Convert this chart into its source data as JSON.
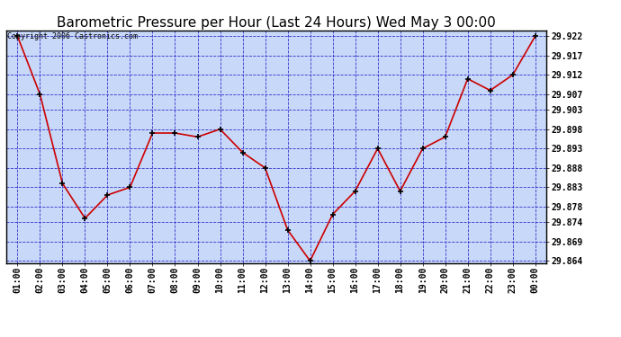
{
  "title": "Barometric Pressure per Hour (Last 24 Hours) Wed May 3 00:00",
  "copyright": "Copyright 2006 Castronics.com",
  "line_color": "#cc0000",
  "marker_color": "#000000",
  "background_color": "#c8d8f8",
  "plot_bg_color": "#c8d8f8",
  "grid_color": "#3333cc",
  "border_color": "#000000",
  "x_labels": [
    "01:00",
    "02:00",
    "03:00",
    "04:00",
    "05:00",
    "06:00",
    "07:00",
    "08:00",
    "09:00",
    "10:00",
    "11:00",
    "12:00",
    "13:00",
    "14:00",
    "15:00",
    "16:00",
    "17:00",
    "18:00",
    "19:00",
    "20:00",
    "21:00",
    "22:00",
    "23:00",
    "00:00"
  ],
  "y_values": [
    29.922,
    29.907,
    29.884,
    29.875,
    29.881,
    29.883,
    29.897,
    29.897,
    29.896,
    29.898,
    29.892,
    29.888,
    29.872,
    29.864,
    29.876,
    29.882,
    29.893,
    29.882,
    29.893,
    29.896,
    29.911,
    29.908,
    29.912,
    29.922
  ],
  "ylim_min": 29.8635,
  "ylim_max": 29.9235,
  "yticks": [
    29.864,
    29.869,
    29.874,
    29.878,
    29.883,
    29.888,
    29.893,
    29.898,
    29.903,
    29.907,
    29.912,
    29.917,
    29.922
  ],
  "title_fontsize": 11,
  "copyright_fontsize": 6,
  "tick_fontsize": 7,
  "fig_bg_color": "#ffffff"
}
